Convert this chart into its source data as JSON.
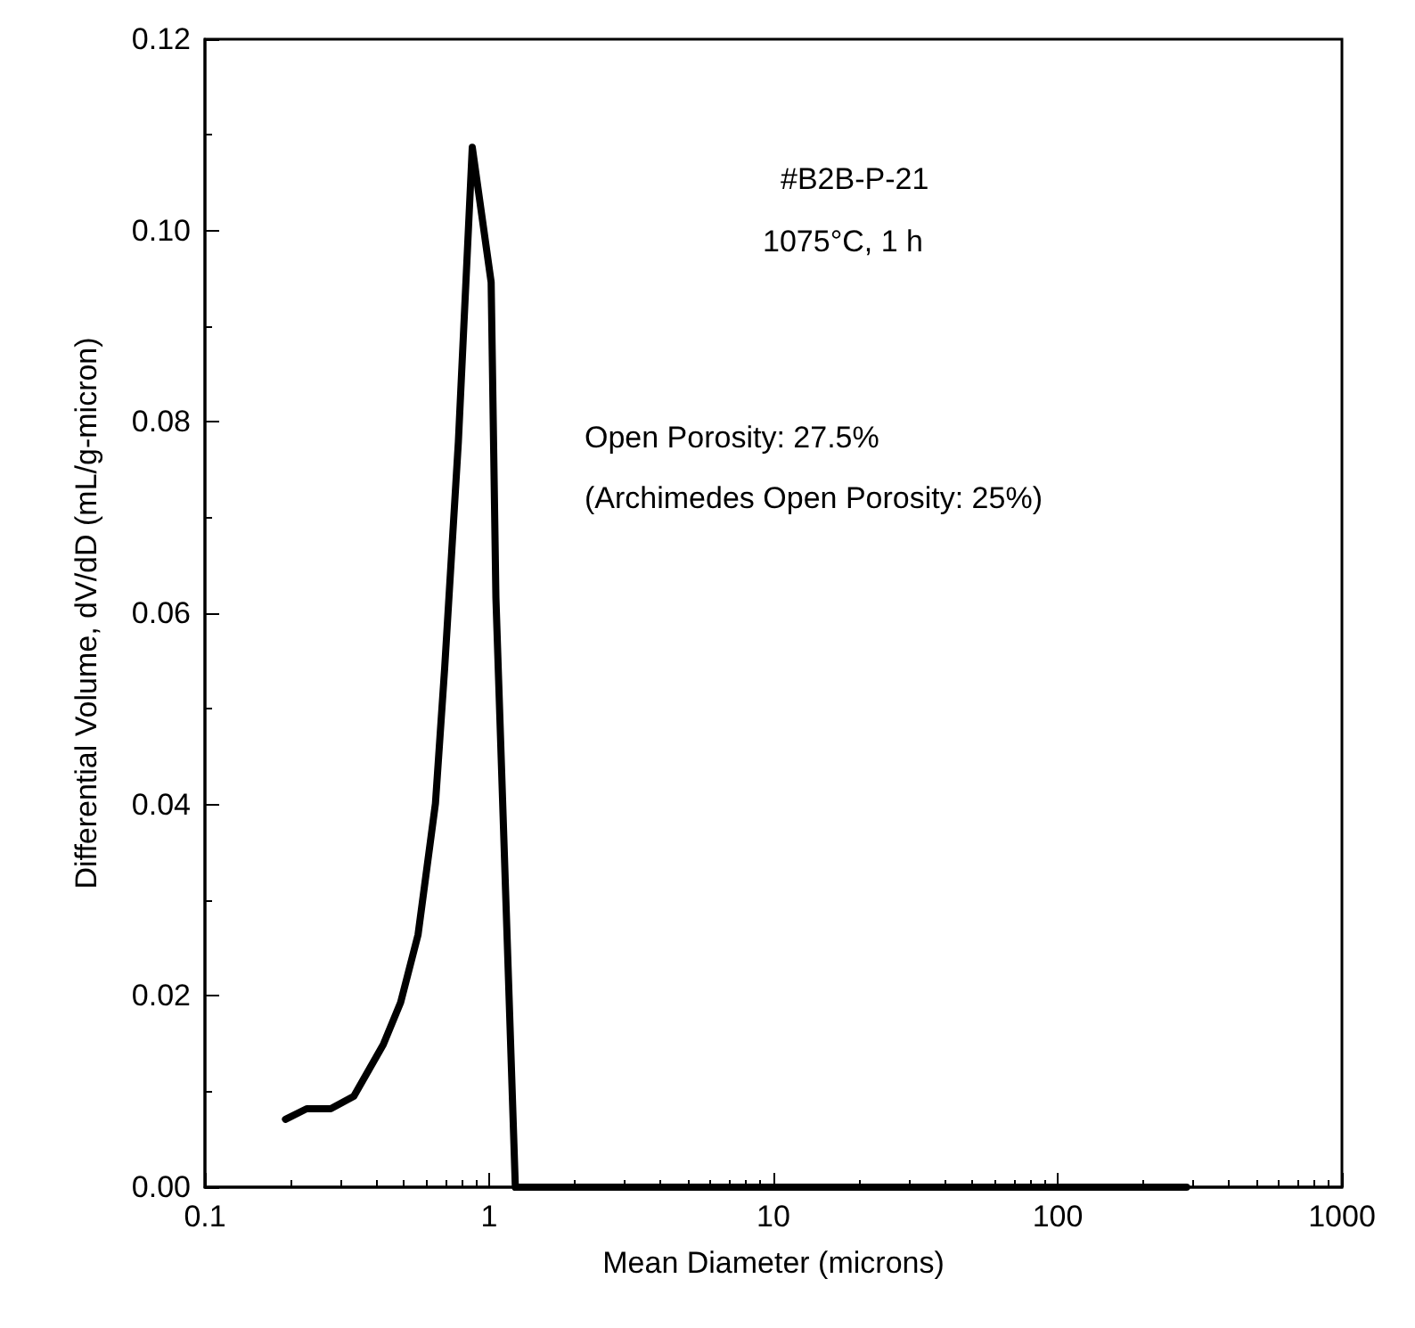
{
  "chart_data": {
    "type": "line",
    "xlabel": "Mean Diameter (microns)",
    "ylabel": "Differential Volume, dV/dD (mL/g-micron)",
    "annotations": [
      "#B2B-P-21",
      "1075°C, 1 h",
      "Open Porosity: 27.5%",
      "(Archimedes Open Porosity: 25%)"
    ],
    "log": "x",
    "xlim": [
      0.1,
      1000
    ],
    "xticks": [
      0.1,
      1,
      10,
      100,
      1000
    ],
    "ylim": [
      0,
      0.12
    ],
    "yticks": [
      {
        "value": 0,
        "label": "0.00"
      },
      {
        "value": 0.02,
        "label": "0.02"
      },
      {
        "value": 0.04,
        "label": "0.04"
      },
      {
        "value": 0.06,
        "label": "0.06"
      },
      {
        "value": 0.08,
        "label": "0.08"
      },
      {
        "value": 0.1,
        "label": "0.10"
      },
      {
        "value": 0.12,
        "label": "0.12"
      }
    ],
    "marker": "none",
    "line_style": "solid",
    "series": [
      {
        "color": "#000000",
        "x": [
          0.192,
          0.228,
          0.277,
          0.334,
          0.424,
          0.488,
          0.562,
          0.647,
          0.697,
          0.779,
          0.872,
          1.016,
          1.056,
          1.236,
          1.3,
          284
        ],
        "values": [
          0.0071,
          0.0082,
          0.0082,
          0.0095,
          0.0149,
          0.0193,
          0.0264,
          0.0401,
          0.0542,
          0.0779,
          0.1087,
          0.0946,
          0.0616,
          0,
          0,
          0
        ]
      }
    ]
  }
}
